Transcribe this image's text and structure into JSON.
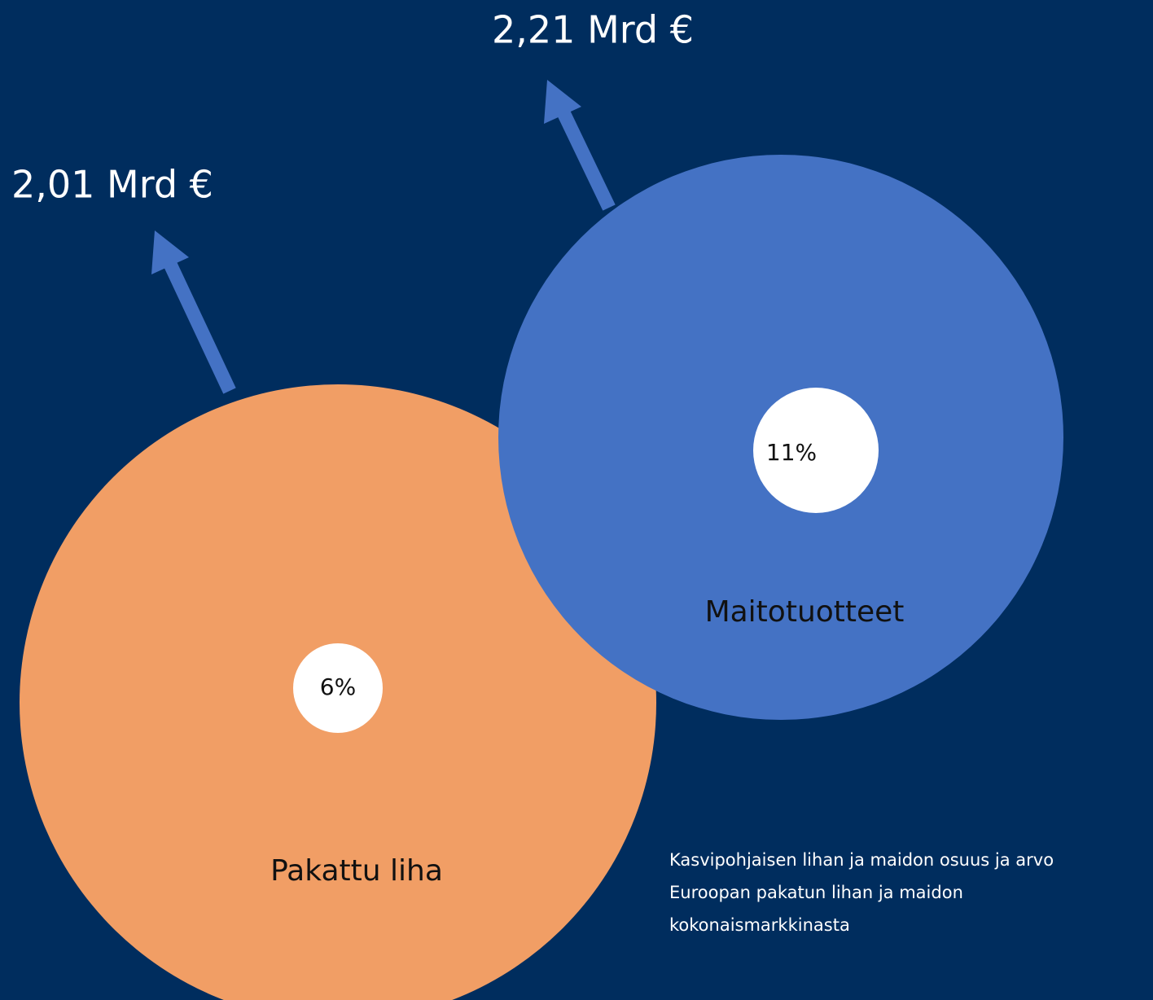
{
  "segments": [
    {
      "name": "Maitotuotteet",
      "share": "11%",
      "value": "2,21 Mrd €"
    },
    {
      "name": "Pakattu liha",
      "share": "6%",
      "value": "2,01 Mrd €"
    }
  ],
  "caption": [
    "Kasvipohjaisen lihan ja maidon osuus ja arvo",
    "Euroopan pakatun lihan ja maidon",
    "kokonaismarkkinasta"
  ]
}
